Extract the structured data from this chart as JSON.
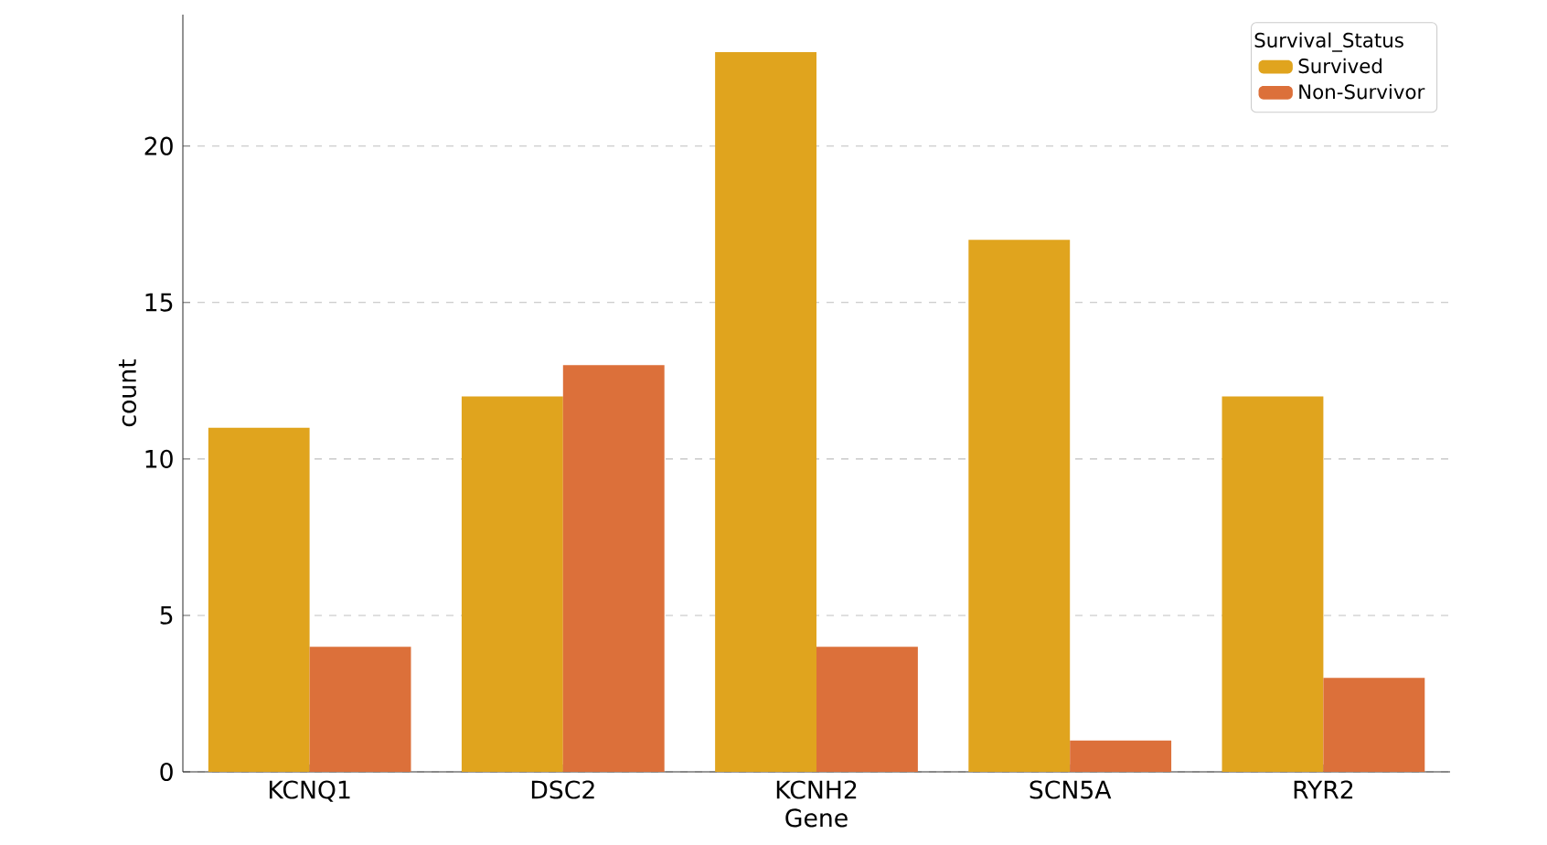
{
  "chart_data": {
    "type": "bar",
    "xlabel": "Gene",
    "ylabel": "count",
    "legend_title": "Survival_Status",
    "categories": [
      "KCNQ1",
      "DSC2",
      "KCNH2",
      "SCN5A",
      "RYR2"
    ],
    "series": [
      {
        "name": "Survived",
        "color": "#e0a41e",
        "values": [
          11,
          12,
          23,
          17,
          12
        ]
      },
      {
        "name": "Non-Survivor",
        "color": "#dc703a",
        "values": [
          4,
          13,
          4,
          1,
          3
        ]
      }
    ],
    "ylim": [
      0,
      24.2
    ],
    "yticks": [
      0,
      5,
      10,
      15,
      20
    ],
    "grid": "y",
    "legend": "top right"
  }
}
